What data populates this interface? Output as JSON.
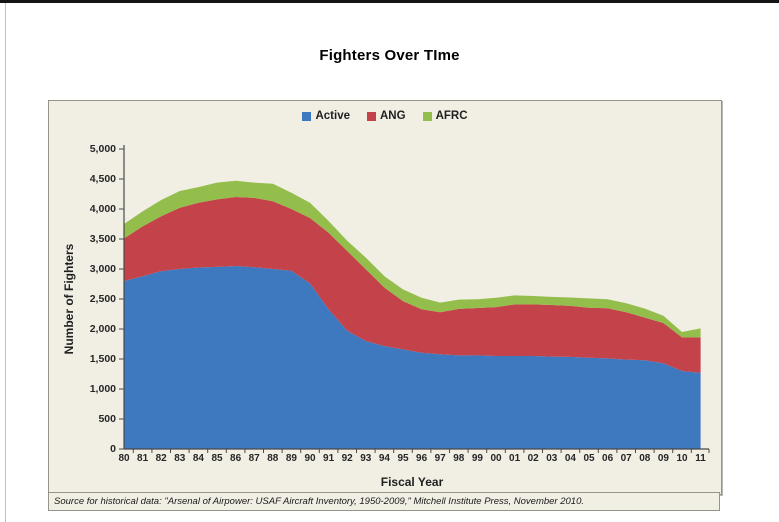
{
  "page": {
    "title": "Fighters Over TIme"
  },
  "source_note": "Source for historical data: \"Arsenal of Airpower: USAF Aircraft Inventory, 1950-2009,\" Mitchell Institute Press, November 2010.",
  "chart_data": {
    "type": "area",
    "stacked": true,
    "title": "Fighters Over TIme",
    "xlabel": "Fiscal Year",
    "ylabel": "Number of Fighters",
    "ylim": [
      0,
      5000
    ],
    "grid": false,
    "legend_position": "top-center",
    "background_color": "#F1EEE4",
    "x_labels": [
      "80",
      "81",
      "82",
      "83",
      "84",
      "85",
      "86",
      "87",
      "88",
      "89",
      "90",
      "91",
      "92",
      "93",
      "94",
      "95",
      "96",
      "97",
      "98",
      "99",
      "00",
      "01",
      "02",
      "03",
      "04",
      "05",
      "06",
      "07",
      "08",
      "09",
      "10",
      "11"
    ],
    "series": [
      {
        "name": "Active",
        "color": "#3E78BE",
        "values": [
          2800,
          2880,
          2965,
          3000,
          3025,
          3035,
          3050,
          3030,
          3000,
          2970,
          2760,
          2330,
          1970,
          1800,
          1715,
          1660,
          1605,
          1580,
          1560,
          1560,
          1550,
          1550,
          1550,
          1540,
          1535,
          1520,
          1510,
          1490,
          1480,
          1430,
          1300,
          1270
        ]
      },
      {
        "name": "ANG",
        "color": "#C4424A",
        "values": [
          710,
          830,
          915,
          1020,
          1080,
          1125,
          1150,
          1155,
          1130,
          1030,
          1090,
          1275,
          1330,
          1195,
          975,
          805,
          725,
          700,
          775,
          790,
          815,
          860,
          860,
          860,
          850,
          835,
          835,
          790,
          710,
          670,
          560,
          590
        ]
      },
      {
        "name": "AFRC",
        "color": "#94BE4C",
        "values": [
          240,
          250,
          270,
          280,
          260,
          280,
          270,
          255,
          290,
          270,
          255,
          195,
          170,
          195,
          190,
          195,
          190,
          160,
          155,
          145,
          155,
          150,
          140,
          135,
          140,
          155,
          150,
          150,
          150,
          120,
          90,
          150
        ]
      }
    ],
    "y_tick_values": [
      0,
      500,
      1000,
      1500,
      2000,
      2500,
      3000,
      3500,
      4000,
      4500,
      5000
    ],
    "y_tick_labels": [
      "0",
      "500",
      "1,000",
      "1,500",
      "2,000",
      "2,500",
      "3,000",
      "3,500",
      "4,000",
      "4,500",
      "5,000"
    ]
  }
}
